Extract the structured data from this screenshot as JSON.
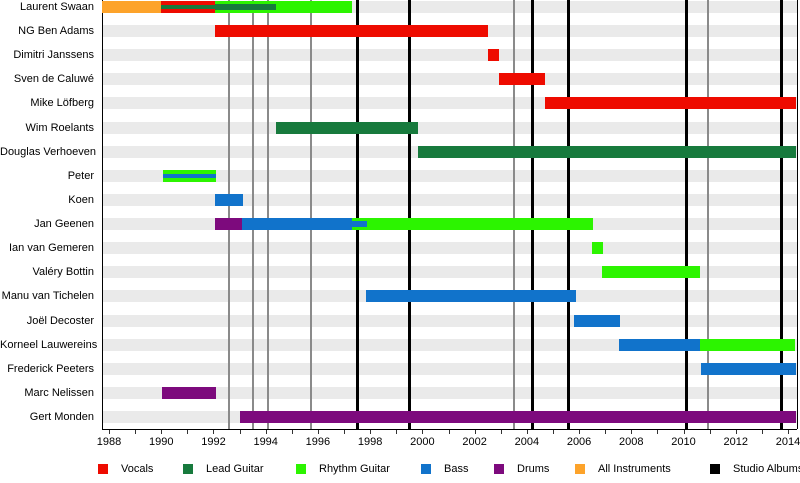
{
  "chart_data": {
    "type": "timeline",
    "description": "Band members timeline (Gantt-style) with roles by year and album release lines",
    "x_axis": {
      "tick_labels": [
        "1988",
        "1990",
        "1992",
        "1994",
        "1996",
        "1998",
        "2000",
        "2002",
        "2004",
        "2006",
        "2008",
        "2010",
        "2012",
        "2014"
      ],
      "minor_tick_first": 1988,
      "minor_tick_last": 2014,
      "minor_tick_step": 1,
      "range_start": 1987.73,
      "range_end": 2014.32
    },
    "role_colors": {
      "vocals": "#ee0b00",
      "lead_guitar": "#177a3d",
      "rhythm_guitar": "#2cf400",
      "bass": "#1173cb",
      "drums": "#7d0a7d",
      "all_instruments": "#fda32a",
      "studio_albums": "#000000"
    },
    "track_color": "#eaeaea",
    "gray_line_color": "#8a8a8a",
    "members": [
      {
        "name": "Laurent Swaan",
        "segments": [
          {
            "from": 1987.73,
            "to": 1990.0,
            "role": "all_instruments"
          },
          {
            "from": 1990.0,
            "to": 1992.05,
            "role": "vocals",
            "stripe": "lead_guitar"
          },
          {
            "from": 1992.05,
            "to": 1994.4,
            "role": "rhythm_guitar",
            "stripe": "lead_guitar",
            "stripe_weight": "thick"
          },
          {
            "from": 1994.4,
            "to": 1997.3,
            "role": "rhythm_guitar"
          }
        ]
      },
      {
        "name": "NG Ben Adams",
        "segments": [
          {
            "from": 1992.05,
            "to": 2002.52,
            "role": "vocals"
          }
        ]
      },
      {
        "name": "Dimitri Janssens",
        "segments": [
          {
            "from": 2002.52,
            "to": 2002.95,
            "role": "vocals"
          }
        ]
      },
      {
        "name": "Sven de Caluwé",
        "segments": [
          {
            "from": 2002.95,
            "to": 2004.7,
            "role": "vocals"
          }
        ]
      },
      {
        "name": "Mike Löfberg",
        "segments": [
          {
            "from": 2004.7,
            "to": 2014.32,
            "role": "vocals"
          }
        ]
      },
      {
        "name": "Wim Roelants",
        "segments": [
          {
            "from": 1994.4,
            "to": 1999.83,
            "role": "lead_guitar"
          }
        ]
      },
      {
        "name": "Douglas Verhoeven",
        "segments": [
          {
            "from": 1999.83,
            "to": 2014.32,
            "role": "lead_guitar"
          }
        ]
      },
      {
        "name": "Peter",
        "segments": [
          {
            "from": 1990.05,
            "to": 1992.1,
            "role": "rhythm_guitar",
            "stripe": "bass"
          }
        ]
      },
      {
        "name": "Koen",
        "segments": [
          {
            "from": 1992.05,
            "to": 1993.13,
            "role": "bass"
          }
        ]
      },
      {
        "name": "Jan Geenen",
        "segments": [
          {
            "from": 1992.05,
            "to": 1993.09,
            "role": "drums"
          },
          {
            "from": 1993.09,
            "to": 1997.31,
            "role": "bass"
          },
          {
            "from": 1997.31,
            "to": 1997.88,
            "role": "rhythm_guitar",
            "stripe": "bass",
            "stripe_weight": "thick"
          },
          {
            "from": 1997.88,
            "to": 2006.53,
            "role": "rhythm_guitar"
          }
        ]
      },
      {
        "name": "Ian van Gemeren",
        "segments": [
          {
            "from": 2006.5,
            "to": 2006.92,
            "role": "rhythm_guitar"
          }
        ]
      },
      {
        "name": "Valéry Bottin",
        "segments": [
          {
            "from": 2006.88,
            "to": 2010.63,
            "role": "rhythm_guitar"
          }
        ]
      },
      {
        "name": "Manu van Tichelen",
        "segments": [
          {
            "from": 1997.84,
            "to": 2005.88,
            "role": "bass"
          }
        ]
      },
      {
        "name": "Joël Decoster",
        "segments": [
          {
            "from": 2005.81,
            "to": 2007.57,
            "role": "bass"
          }
        ]
      },
      {
        "name": "Korneel Lauwereins",
        "segments": [
          {
            "from": 2007.53,
            "to": 2010.63,
            "role": "bass"
          },
          {
            "from": 2010.63,
            "to": 2014.27,
            "role": "rhythm_guitar"
          }
        ]
      },
      {
        "name": "Frederick Peeters",
        "segments": [
          {
            "from": 2010.67,
            "to": 2014.32,
            "role": "bass"
          }
        ]
      },
      {
        "name": "Marc Nelissen",
        "segments": [
          {
            "from": 1990.03,
            "to": 1992.1,
            "role": "drums"
          }
        ]
      },
      {
        "name": "Gert Monden",
        "segments": [
          {
            "from": 1993.02,
            "to": 2014.32,
            "role": "drums"
          }
        ]
      }
    ],
    "studio_album_lines": [
      1997.5,
      1999.5,
      2004.2,
      2005.6,
      2010.1,
      2013.75
    ],
    "gray_lines": [
      1992.6,
      1993.5,
      1994.1,
      1995.75,
      2003.5,
      2010.95
    ],
    "legend": [
      {
        "label": "Vocals",
        "role": "vocals"
      },
      {
        "label": "Lead Guitar",
        "role": "lead_guitar"
      },
      {
        "label": "Rhythm Guitar",
        "role": "rhythm_guitar"
      },
      {
        "label": "Bass",
        "role": "bass"
      },
      {
        "label": "Drums",
        "role": "drums"
      },
      {
        "label": "All Instruments",
        "role": "all_instruments"
      },
      {
        "label": "Studio Albums",
        "role": "studio_albums"
      }
    ]
  }
}
